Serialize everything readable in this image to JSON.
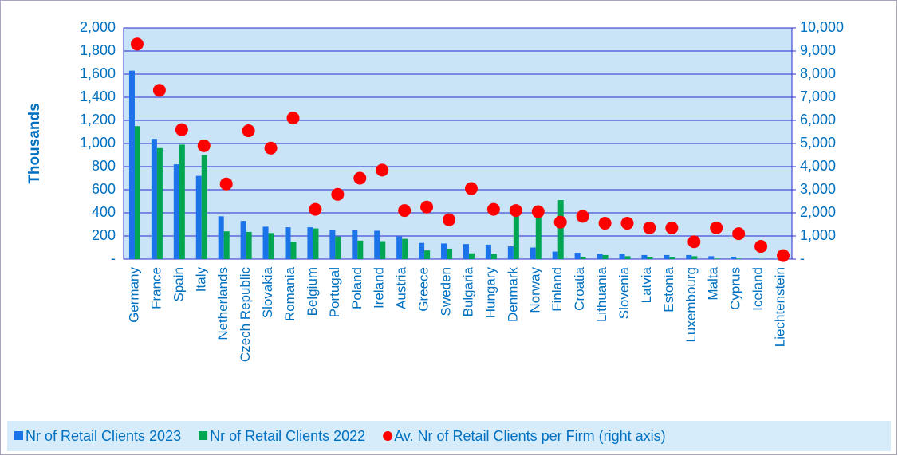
{
  "chart_data": {
    "type": "bar",
    "y_label": "Thousands",
    "categories": [
      "Germany",
      "France",
      "Spain",
      "Italy",
      "Netherlands",
      "Czech Republic",
      "Slovakia",
      "Romania",
      "Belgium",
      "Portugal",
      "Poland",
      "Ireland",
      "Austria",
      "Greece",
      "Sweden",
      "Bulgaria",
      "Hungary",
      "Denmark",
      "Norway",
      "Finland",
      "Croatia",
      "Lithuania",
      "Slovenia",
      "Latvia",
      "Estonia",
      "Luxembourg",
      "Malta",
      "Cyprus",
      "Iceland",
      "Liechtenstein"
    ],
    "series": [
      {
        "name": "Nr of Retail Clients 2023",
        "color": "#1a73e8",
        "type": "bar",
        "values": [
          1630,
          1040,
          820,
          720,
          370,
          330,
          280,
          275,
          275,
          255,
          250,
          245,
          195,
          140,
          135,
          130,
          125,
          110,
          100,
          65,
          55,
          45,
          45,
          35,
          35,
          35,
          25,
          20,
          5,
          2
        ]
      },
      {
        "name": "Nr of Retail Clients 2022",
        "color": "#00a651",
        "type": "bar",
        "values": [
          1150,
          960,
          990,
          900,
          240,
          235,
          225,
          150,
          265,
          195,
          160,
          155,
          175,
          75,
          90,
          50,
          45,
          390,
          360,
          510,
          20,
          35,
          25,
          15,
          15,
          25,
          5,
          5,
          2,
          1
        ]
      },
      {
        "name": "Av. Nr of Retail Clients per Firm (right axis)",
        "color": "#ff0000",
        "type": "scatter",
        "axis": "y2",
        "values": [
          9300,
          7300,
          5600,
          4900,
          3250,
          5550,
          4800,
          6100,
          2150,
          2800,
          3500,
          3850,
          2100,
          2250,
          1700,
          3050,
          2150,
          2100,
          2050,
          1600,
          1850,
          1550,
          1550,
          1350,
          1350,
          750,
          1350,
          1100,
          550,
          150
        ]
      }
    ],
    "ylim": [
      0,
      2000
    ],
    "yticks": [
      {
        "value": 0,
        "label": "-"
      },
      200,
      400,
      600,
      800,
      {
        "value": 1000,
        "label": "1,000"
      },
      {
        "value": 1200,
        "label": "1,200"
      },
      {
        "value": 1400,
        "label": "1,400"
      },
      {
        "value": 1600,
        "label": "1,600"
      },
      {
        "value": 1800,
        "label": "1,800"
      },
      {
        "value": 2000,
        "label": "2,000"
      }
    ],
    "y2lim": [
      0,
      10000
    ],
    "y2ticks": [
      {
        "value": 0,
        "label": "-"
      },
      {
        "value": 1000,
        "label": "1,000"
      },
      {
        "value": 2000,
        "label": "2,000"
      },
      {
        "value": 3000,
        "label": "3,000"
      },
      {
        "value": 4000,
        "label": "4,000"
      },
      {
        "value": 5000,
        "label": "5,000"
      },
      {
        "value": 6000,
        "label": "6,000"
      },
      {
        "value": 7000,
        "label": "7,000"
      },
      {
        "value": 8000,
        "label": "8,000"
      },
      {
        "value": 9000,
        "label": "9,000"
      },
      {
        "value": 10000,
        "label": "10,000"
      }
    ],
    "grid": true,
    "legend": "bottom"
  }
}
